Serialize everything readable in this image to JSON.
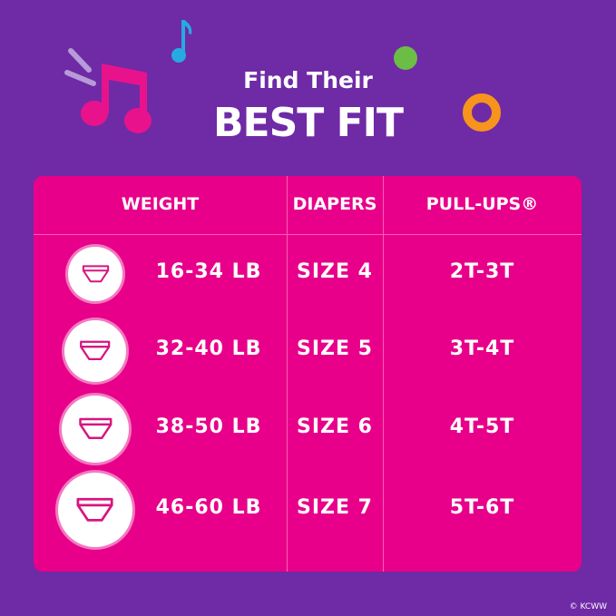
{
  "header": {
    "line1": "Find Their",
    "line2": "BEST FIT"
  },
  "table": {
    "columns": [
      "WEIGHT",
      "DIAPERS",
      "PULL-UPS®"
    ],
    "rows": [
      {
        "icon": "diaper-icon",
        "weight": "16-34 LB",
        "diapers": "SIZE 4",
        "pullups": "2T-3T"
      },
      {
        "icon": "diaper-icon",
        "weight": "32-40 LB",
        "diapers": "SIZE 5",
        "pullups": "3T-4T"
      },
      {
        "icon": "diaper-icon",
        "weight": "38-50 LB",
        "diapers": "SIZE 6",
        "pullups": "4T-5T"
      },
      {
        "icon": "diaper-icon",
        "weight": "46-60 LB",
        "diapers": "SIZE 7",
        "pullups": "5T-6T"
      }
    ]
  },
  "copyright": "© KCWW",
  "colors": {
    "background": "#6f2aa6",
    "table": "#e8008a",
    "note_pink": "#e8138c",
    "note_blue": "#27a9e1",
    "dot_green": "#6cbd45",
    "ring_orange": "#f7941d"
  }
}
